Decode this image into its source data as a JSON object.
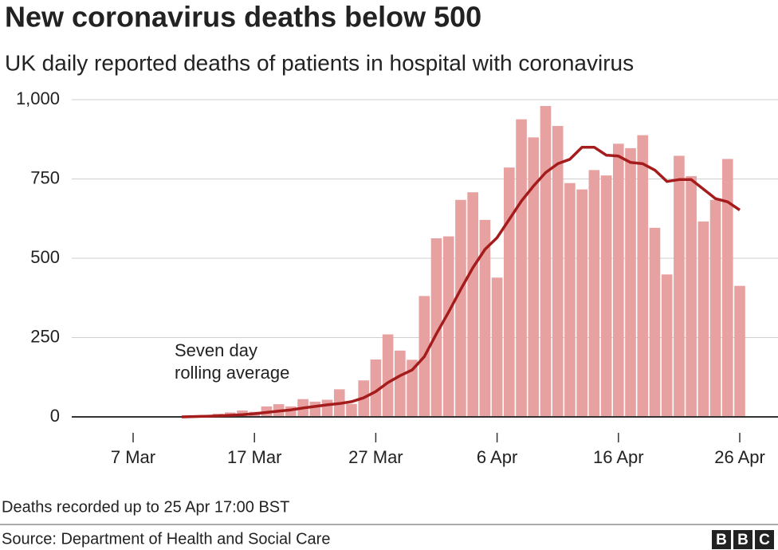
{
  "chart_data": {
    "type": "bar",
    "title": "New coronavirus deaths below 500",
    "subtitle": "UK daily reported deaths of patients in hospital with coronavirus",
    "annotation": [
      "Seven day",
      "rolling average"
    ],
    "note": "Deaths recorded up to 25 Apr 17:00 BST",
    "source": "Source: Department of Health and Social Care",
    "logo": [
      "B",
      "B",
      "C"
    ],
    "categories": [
      null,
      null,
      null,
      null,
      null,
      "7 Mar",
      null,
      null,
      null,
      null,
      null,
      null,
      null,
      null,
      null,
      "17 Mar",
      null,
      null,
      null,
      null,
      null,
      null,
      null,
      null,
      null,
      "27 Mar",
      null,
      null,
      null,
      null,
      null,
      null,
      null,
      null,
      null,
      "6 Apr",
      null,
      null,
      null,
      null,
      null,
      null,
      null,
      null,
      null,
      "16 Apr",
      null,
      null,
      null,
      null,
      null,
      null,
      null,
      null,
      null,
      "26 Apr"
    ],
    "series": [
      {
        "type": "bar",
        "color": "#e8a1a1",
        "values": [
          null,
          null,
          null,
          null,
          null,
          null,
          null,
          null,
          null,
          1,
          2,
          1,
          10,
          14,
          20,
          16,
          33,
          40,
          33,
          56,
          48,
          54,
          87,
          41,
          115,
          181,
          260,
          209,
          180,
          381,
          563,
          569,
          684,
          708,
          621,
          439,
          786,
          938,
          881,
          980,
          917,
          737,
          717,
          778,
          761,
          861,
          847,
          888,
          596,
          449,
          823,
          759,
          616,
          684,
          813,
          413
        ]
      },
      {
        "type": "line",
        "color": "#a51c1c",
        "values": [
          null,
          null,
          null,
          null,
          null,
          null,
          null,
          null,
          null,
          0,
          1,
          2,
          3,
          5,
          7,
          10,
          14,
          18,
          22,
          28,
          33,
          38,
          42,
          48,
          60,
          80,
          108,
          130,
          148,
          190,
          262,
          330,
          402,
          470,
          528,
          565,
          622,
          680,
          728,
          770,
          798,
          812,
          850,
          850,
          825,
          822,
          802,
          798,
          778,
          742,
          748,
          748,
          718,
          688,
          678,
          652
        ]
      }
    ],
    "ylim": [
      0,
      1000
    ],
    "yticks": [
      0,
      250,
      500,
      750,
      {
        "value": 1000,
        "label": "1,000"
      }
    ],
    "grid": true
  }
}
